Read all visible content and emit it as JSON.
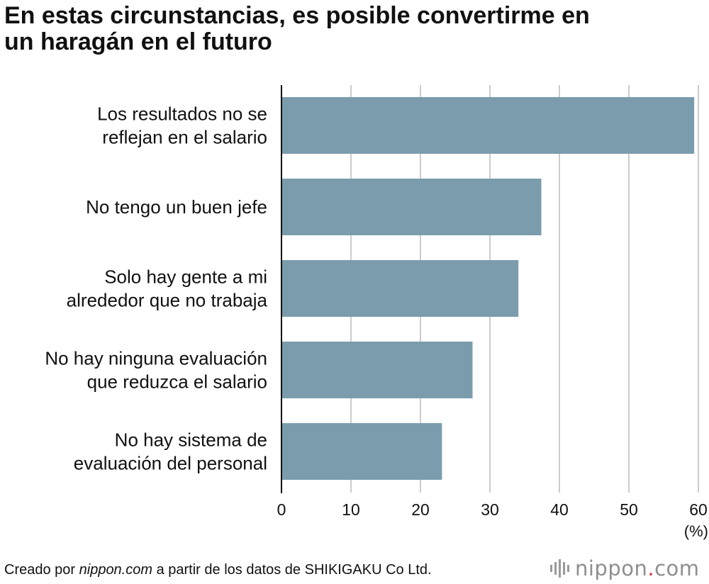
{
  "chart_data": {
    "type": "bar",
    "orientation": "horizontal",
    "title_lines": [
      "En estas circunstancias, es posible convertirme en",
      "un haragán en el futuro"
    ],
    "categories": [
      [
        "Los resultados no se",
        "reflejan en el salario"
      ],
      [
        "No tengo un buen jefe"
      ],
      [
        "Solo hay gente a mi",
        "alrededor que no trabaja"
      ],
      [
        "No hay ninguna evaluación",
        "que reduzca el salario"
      ],
      [
        "No hay sistema de",
        "evaluación del personal"
      ]
    ],
    "values": [
      59.4,
      37.4,
      34.1,
      27.5,
      23.1
    ],
    "xlim": [
      0,
      60
    ],
    "xticks": [
      0,
      10,
      20,
      30,
      40,
      50,
      60
    ],
    "xlabel": "(%)",
    "grid": true,
    "bar_color": "#7b9cac",
    "grid_color": "#cccccc",
    "axis_color": "#111111"
  },
  "footer": {
    "prefix": "Creado por ",
    "source": "nippon.com",
    "suffix": " a partir de los datos de SHIKIGAKU Co Ltd."
  },
  "logo": {
    "name": "nippon",
    "dot": ".",
    "tld": "com",
    "dot_color": "#d4323a",
    "text_color": "#8f8f8f"
  }
}
